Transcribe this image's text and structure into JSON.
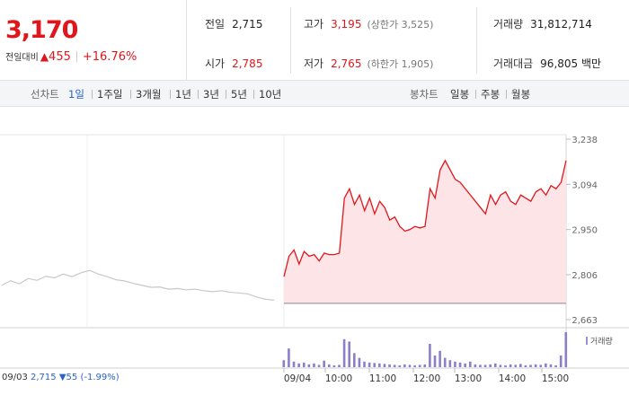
{
  "header": {
    "price": "3,170",
    "change_label": "전일대비",
    "change_arrow": "▲",
    "change_value": "455",
    "change_pct": "+16.76%",
    "stats": {
      "prev_close": {
        "label": "전일",
        "value": "2,715"
      },
      "high": {
        "label": "고가",
        "value": "3,195",
        "sub": "(상한가 3,525)"
      },
      "volume": {
        "label": "거래량",
        "value": "31,812,714"
      },
      "open": {
        "label": "시가",
        "value": "2,785"
      },
      "low": {
        "label": "저가",
        "value": "2,765",
        "sub": "(하한가 1,905)"
      },
      "amount": {
        "label": "거래대금",
        "value": "96,805 백만"
      }
    }
  },
  "toolbar": {
    "line_chart_label": "선차트",
    "line_periods": [
      "1일",
      "1주일",
      "3개월",
      "1년",
      "3년",
      "5년",
      "10년"
    ],
    "active_period": "1일",
    "candle_label": "봉차트",
    "candle_periods": [
      "일봉",
      "주봉",
      "월봉"
    ]
  },
  "chart_data": {
    "type": "line",
    "prev_day": {
      "date": "09/03",
      "close": "2,715",
      "change": "▼55",
      "pct": "(-1.99%)",
      "approx_prices": [
        2772,
        2787,
        2777,
        2794,
        2788,
        2801,
        2796,
        2808,
        2800,
        2812,
        2820,
        2808,
        2800,
        2790,
        2786,
        2778,
        2772,
        2766,
        2767,
        2760,
        2762,
        2758,
        2760,
        2755,
        2752,
        2755,
        2750,
        2748,
        2745,
        2735,
        2728,
        2725
      ]
    },
    "today": {
      "date": "09/04",
      "x_labels": [
        "09/04",
        "10:00",
        "11:00",
        "12:00",
        "13:00",
        "14:00",
        "15:00"
      ],
      "approx_prices": [
        2800,
        2865,
        2885,
        2840,
        2880,
        2865,
        2870,
        2850,
        2875,
        2870,
        2870,
        2875,
        3050,
        3080,
        3030,
        3060,
        3010,
        3050,
        3000,
        3040,
        3020,
        2980,
        2990,
        2960,
        2945,
        2950,
        2960,
        2955,
        2960,
        3080,
        3050,
        3140,
        3170,
        3140,
        3110,
        3100,
        3080,
        3060,
        3040,
        3020,
        3000,
        3060,
        3030,
        3060,
        3070,
        3040,
        3030,
        3060,
        3050,
        3040,
        3070,
        3080,
        3060,
        3090,
        3080,
        3100,
        3170
      ],
      "approx_volumes": [
        15,
        40,
        12,
        8,
        10,
        6,
        8,
        5,
        14,
        6,
        4,
        5,
        60,
        55,
        30,
        20,
        12,
        10,
        9,
        8,
        7,
        6,
        5,
        4,
        6,
        5,
        4,
        5,
        6,
        50,
        25,
        35,
        20,
        15,
        12,
        10,
        8,
        12,
        6,
        5,
        5,
        6,
        8,
        5,
        4,
        6,
        5,
        7,
        4,
        5,
        6,
        5,
        8,
        6,
        4,
        25,
        75
      ]
    },
    "y_ticks": [
      "3,238",
      "3,094",
      "2,950",
      "2,806",
      "2,663"
    ],
    "y_range": [
      2663,
      3238
    ],
    "prev_close_line": 2715,
    "volume_legend": "거래량"
  },
  "colors": {
    "up": "#e0161b",
    "down": "#2a64c5",
    "today_fill": "#fde4e6",
    "prev_line": "#c8c8c8",
    "volume": "#8b7fc9",
    "active": "#2a64c5"
  }
}
